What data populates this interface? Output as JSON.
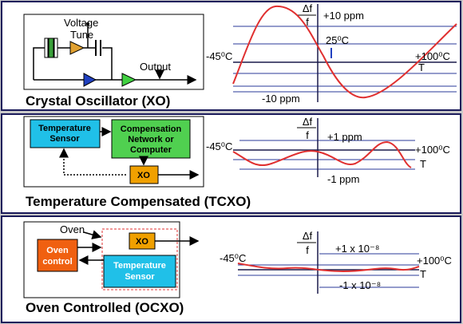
{
  "panels": [
    {
      "title": "Crystal Oscillator (XO)",
      "diagram": {
        "voltage": "Voltage",
        "tune": "Tune",
        "output": "Output"
      },
      "graph": {
        "delta_f": "Δf",
        "f": "f",
        "upper": "+10 ppm",
        "lower": "-10 ppm",
        "t_low": "-45⁰C",
        "t_high": "+100⁰C",
        "t_axis": "T",
        "t_ref": "25⁰C"
      }
    },
    {
      "title": "Temperature Compensated (TCXO)",
      "diagram": {
        "sensor": [
          "Temperature",
          "Sensor"
        ],
        "network": [
          "Compensation",
          "Network or",
          "Computer"
        ],
        "xo": "XO"
      },
      "graph": {
        "delta_f": "Δf",
        "f": "f",
        "upper": "+1 ppm",
        "lower": "-1 ppm",
        "t_low": "-45⁰C",
        "t_high": "+100⁰C",
        "t_axis": "T"
      }
    },
    {
      "title": "Oven Controlled (OCXO)",
      "diagram": {
        "oven": "Oven",
        "xo": "XO",
        "control": [
          "Oven",
          "control"
        ],
        "sensor": [
          "Temperature",
          "Sensor"
        ]
      },
      "graph": {
        "delta_f": "Δf",
        "f": "f",
        "upper": "+1 x 10⁻⁸",
        "lower": "-1 x 10⁻⁸",
        "t_low": "-45⁰C",
        "t_high": "+100⁰C",
        "t_axis": "T"
      }
    }
  ]
}
